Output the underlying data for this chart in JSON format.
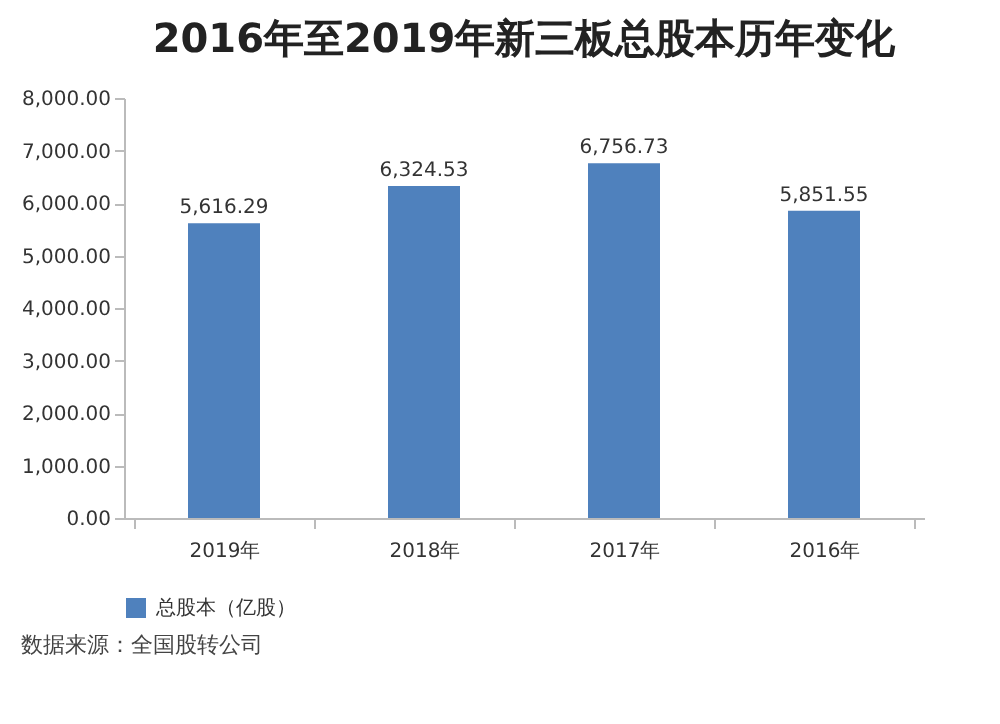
{
  "chart_data": {
    "type": "bar",
    "title": "2016年至2019年新三板总股本历年变化",
    "categories": [
      "2019年",
      "2018年",
      "2017年",
      "2016年"
    ],
    "series": [
      {
        "name": "总股本（亿股）",
        "color": "#4f81bd",
        "values": [
          5616.29,
          6324.53,
          6756.73,
          5851.55
        ]
      }
    ],
    "value_labels": [
      "5,616.29",
      "6,324.53",
      "6,756.73",
      "5,851.55"
    ],
    "ylim": [
      0,
      8000
    ],
    "yticks": [
      {
        "value": 0,
        "label": "0.00"
      },
      {
        "value": 1000,
        "label": "1,000.00"
      },
      {
        "value": 2000,
        "label": "2,000.00"
      },
      {
        "value": 3000,
        "label": "3,000.00"
      },
      {
        "value": 4000,
        "label": "4,000.00"
      },
      {
        "value": 5000,
        "label": "5,000.00"
      },
      {
        "value": 6000,
        "label": "6,000.00"
      },
      {
        "value": 7000,
        "label": "7,000.00"
      },
      {
        "value": 8000,
        "label": "8,000.00"
      }
    ],
    "grid": false,
    "legend": "bottom",
    "annotations": [
      "数据来源：全国股转公司"
    ]
  }
}
